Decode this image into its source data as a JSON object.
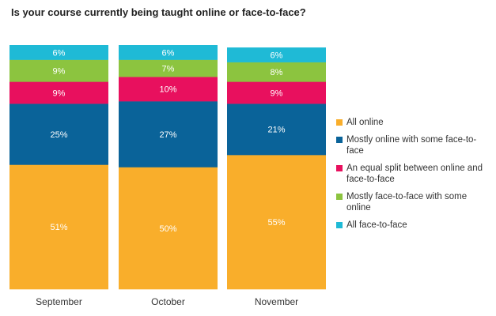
{
  "chart_data": {
    "type": "bar",
    "stacked": true,
    "normalized": true,
    "title": "Is your course currently being taught online or face-to-face?",
    "xlabel": "",
    "ylabel": "",
    "ylim": [
      0,
      100
    ],
    "grid": false,
    "legend_position": "right",
    "categories": [
      "September",
      "October",
      "November"
    ],
    "series": [
      {
        "name": "All online",
        "color": "#f9ae2b",
        "values": [
          51,
          50,
          55
        ],
        "labels": [
          "51%",
          "50%",
          "55%"
        ]
      },
      {
        "name": "Mostly online with some face-to-face",
        "color": "#0a6399",
        "values": [
          25,
          27,
          21
        ],
        "labels": [
          "25%",
          "27%",
          "21%"
        ]
      },
      {
        "name": "An equal split between online and face-to-face",
        "color": "#e8105e",
        "values": [
          9,
          10,
          9
        ],
        "labels": [
          "9%",
          "10%",
          "9%"
        ]
      },
      {
        "name": "Mostly face-to-face with some online",
        "color": "#8cc43f",
        "values": [
          9,
          7,
          8
        ],
        "labels": [
          "9%",
          "7%",
          "8%"
        ]
      },
      {
        "name": "All face-to-face",
        "color": "#1fbad6",
        "values": [
          6,
          6,
          6
        ],
        "labels": [
          "6%",
          "6%",
          "6%"
        ]
      }
    ]
  }
}
